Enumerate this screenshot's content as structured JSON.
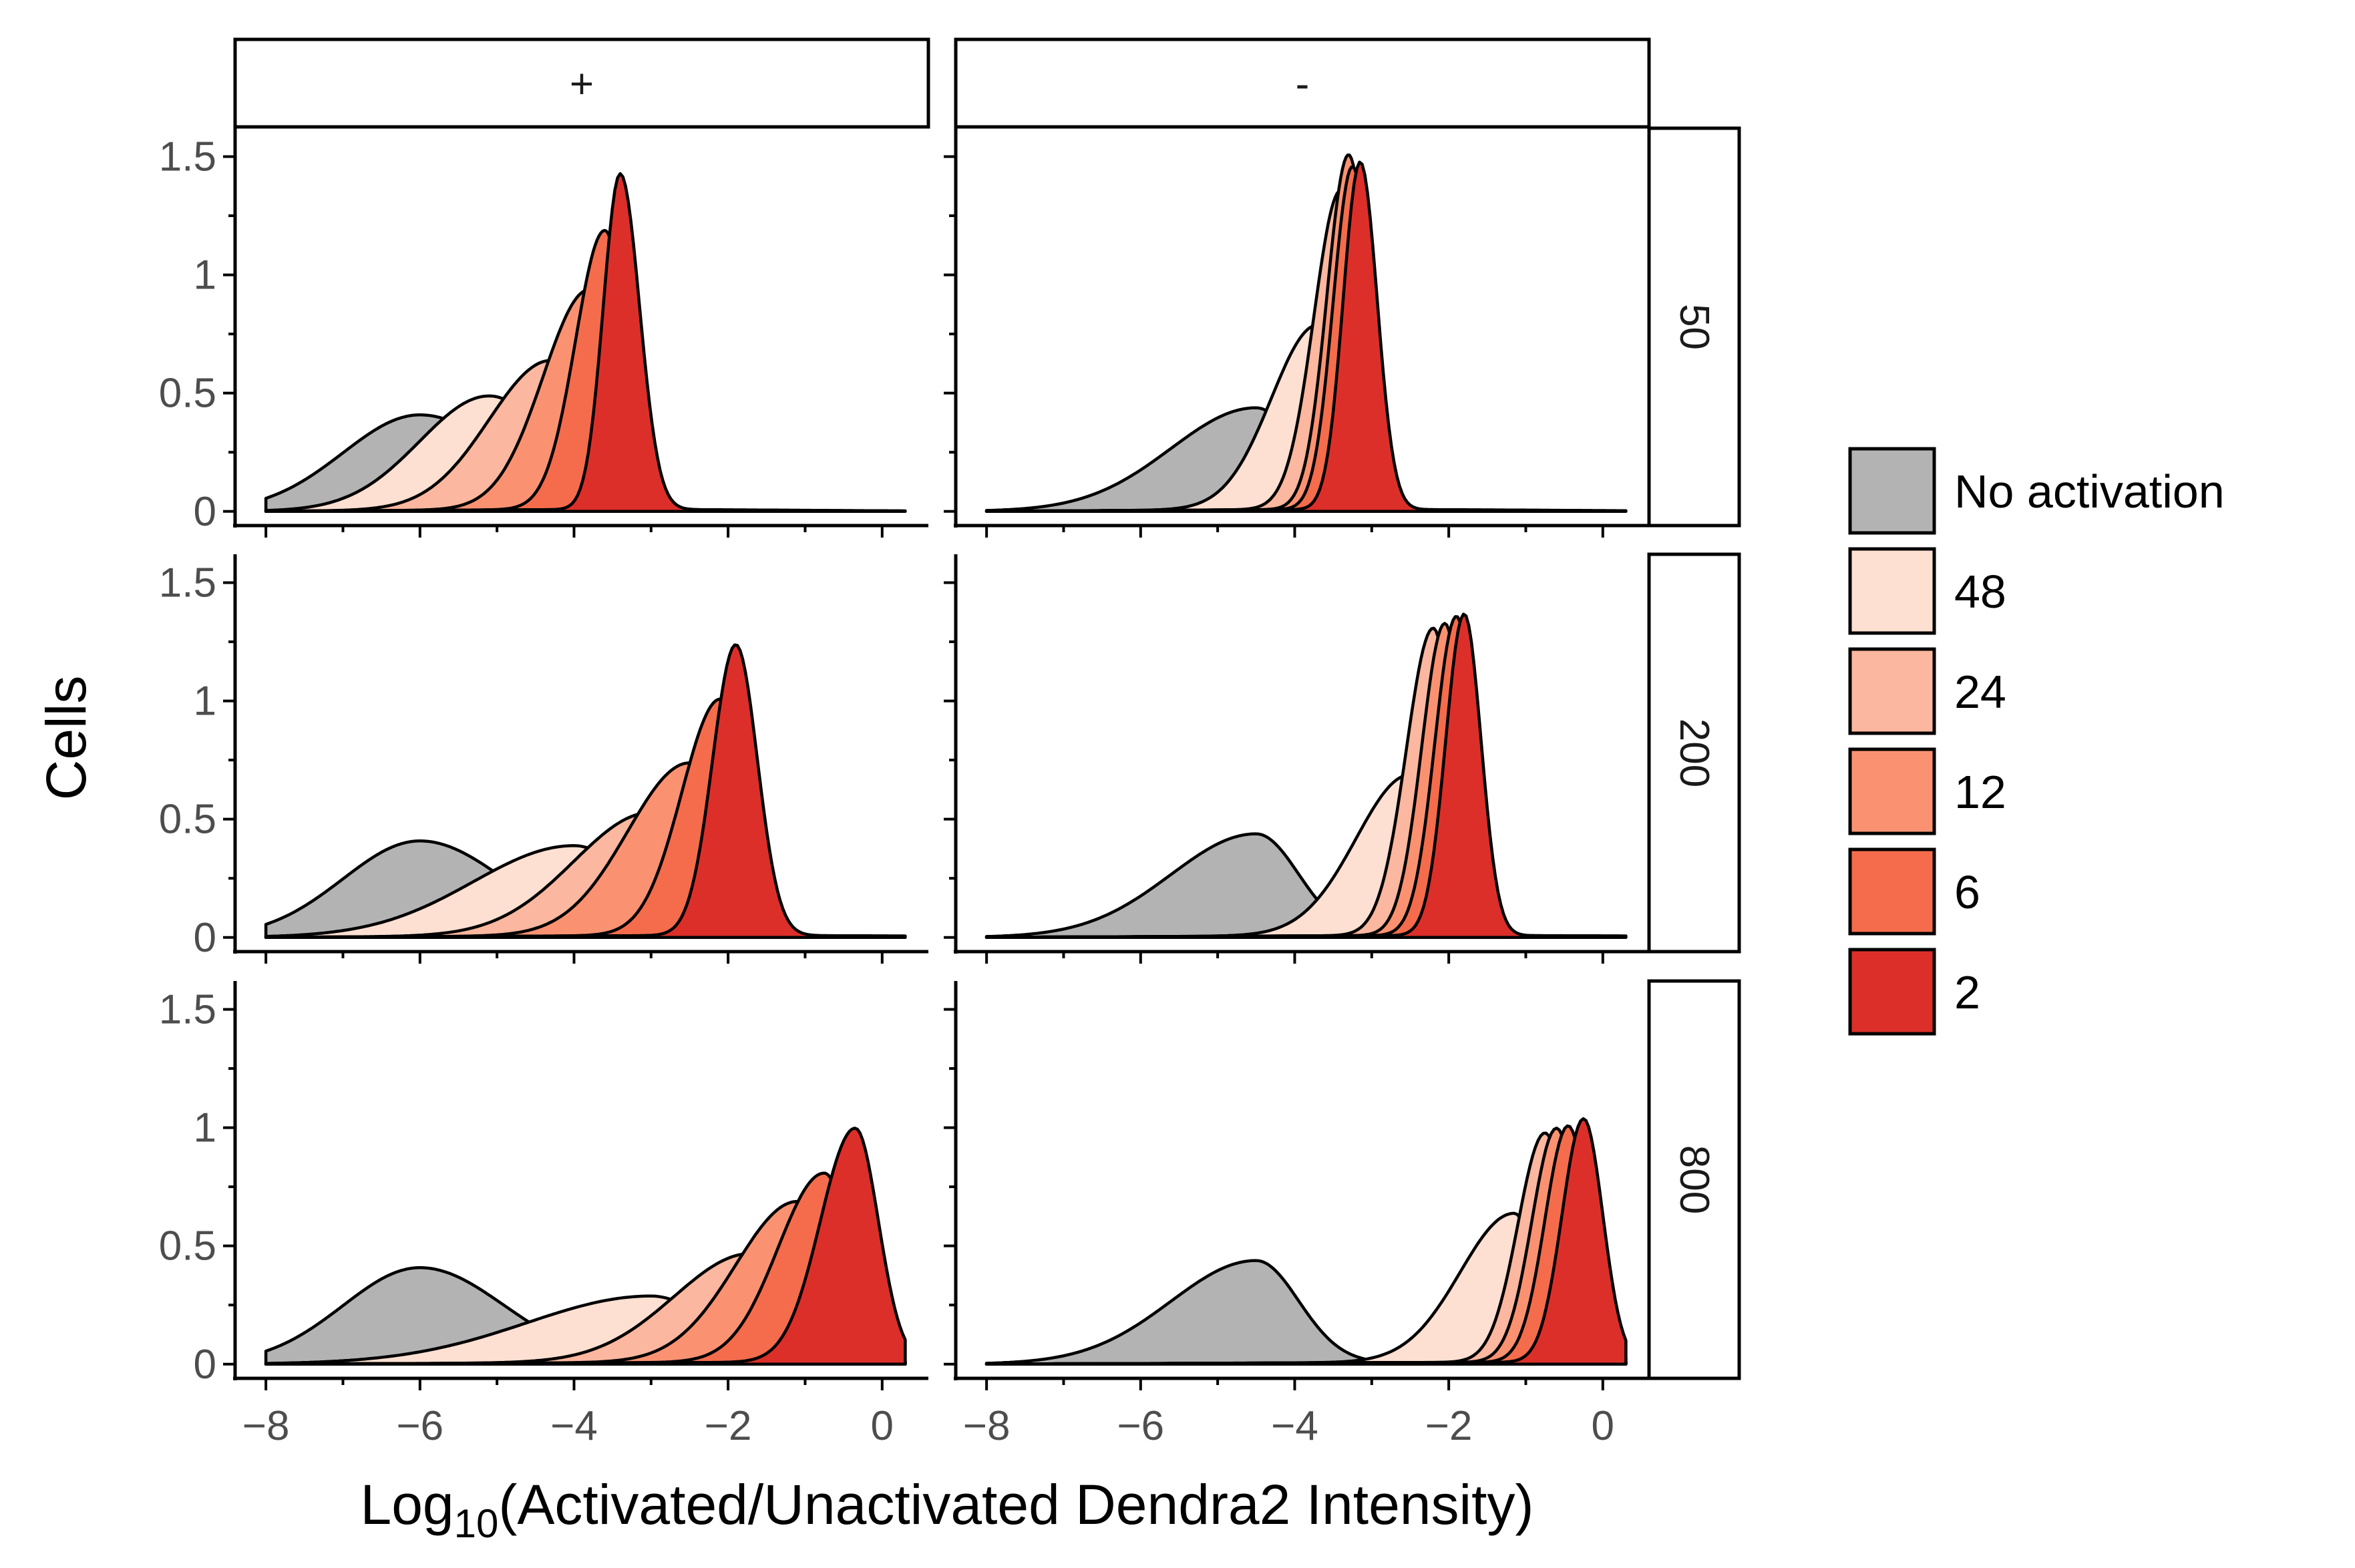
{
  "chart_data": {
    "type": "area",
    "subtype": "faceted density ridge",
    "xlabel_main": "Log",
    "xlabel_sub": "10",
    "xlabel_rest": "(Activated/Unactivated Dendra2 Intensity)",
    "ylabel": "Cells",
    "xlim": [
      -8.4,
      0.6
    ],
    "ylim": [
      -0.06,
      1.62
    ],
    "x_ticks": [
      -8,
      -6,
      -4,
      -2,
      0
    ],
    "x_tick_labels": [
      "−8",
      "−6",
      "−4",
      "−2",
      "0"
    ],
    "y_ticks": [
      0,
      0.5,
      1,
      1.5
    ],
    "y_tick_labels": [
      "0",
      "0.5",
      "1",
      "1.5"
    ],
    "column_facets": [
      "+",
      "-"
    ],
    "row_facets": [
      "50",
      "200",
      "800"
    ],
    "legend": {
      "position": "right",
      "entries": [
        {
          "label": "No activation",
          "color": "#b3b3b3"
        },
        {
          "label": "48",
          "color": "#fde0d2"
        },
        {
          "label": "24",
          "color": "#fbb79f"
        },
        {
          "label": "12",
          "color": "#fa9272"
        },
        {
          "label": "6",
          "color": "#f46c4c"
        },
        {
          "label": "2",
          "color": "#dc2f29"
        }
      ]
    },
    "series_order": [
      "No activation",
      "48",
      "24",
      "12",
      "6",
      "2"
    ],
    "panels": [
      {
        "col": "+",
        "row": "50",
        "series": [
          {
            "name": "No activation",
            "peak_x": -6.0,
            "peak_y": 0.4,
            "sd_left": 1.0,
            "sd_right": 1.1,
            "x_min": -8.0,
            "x_max": -3.0
          },
          {
            "name": "48",
            "peak_x": -5.1,
            "peak_y": 0.48,
            "sd_left": 0.9,
            "sd_right": 0.8,
            "x_min": -8.0,
            "x_max": -2.8
          },
          {
            "name": "24",
            "peak_x": -4.3,
            "peak_y": 0.63,
            "sd_left": 0.8,
            "sd_right": 0.55,
            "x_min": -8.0,
            "x_max": -2.6
          },
          {
            "name": "12",
            "peak_x": -3.8,
            "peak_y": 0.93,
            "sd_left": 0.6,
            "sd_right": 0.38,
            "x_min": -8.0,
            "x_max": -2.4
          },
          {
            "name": "6",
            "peak_x": -3.6,
            "peak_y": 1.18,
            "sd_left": 0.38,
            "sd_right": 0.28,
            "x_min": -8.0,
            "x_max": -2.3
          },
          {
            "name": "2",
            "peak_x": -3.4,
            "peak_y": 1.42,
            "sd_left": 0.22,
            "sd_right": 0.25,
            "x_min": -8.0,
            "x_max": 0.3
          }
        ]
      },
      {
        "col": "-",
        "row": "50",
        "series": [
          {
            "name": "No activation",
            "peak_x": -4.5,
            "peak_y": 0.43,
            "sd_left": 1.1,
            "sd_right": 0.55,
            "x_min": -8.0,
            "x_max": -2.6
          },
          {
            "name": "48",
            "peak_x": -3.7,
            "peak_y": 0.78,
            "sd_left": 0.6,
            "sd_right": 0.35,
            "x_min": -8.0,
            "x_max": -2.4
          },
          {
            "name": "24",
            "peak_x": -3.4,
            "peak_y": 1.35,
            "sd_left": 0.35,
            "sd_right": 0.25,
            "x_min": -8.0,
            "x_max": -2.4
          },
          {
            "name": "12",
            "peak_x": -3.3,
            "peak_y": 1.5,
            "sd_left": 0.28,
            "sd_right": 0.25,
            "x_min": -8.0,
            "x_max": -2.4
          },
          {
            "name": "6",
            "peak_x": -3.25,
            "peak_y": 1.45,
            "sd_left": 0.25,
            "sd_right": 0.24,
            "x_min": -8.0,
            "x_max": -2.4
          },
          {
            "name": "2",
            "peak_x": -3.15,
            "peak_y": 1.47,
            "sd_left": 0.22,
            "sd_right": 0.22,
            "x_min": -8.0,
            "x_max": 0.3
          }
        ]
      },
      {
        "col": "+",
        "row": "200",
        "series": [
          {
            "name": "No activation",
            "peak_x": -6.0,
            "peak_y": 0.4,
            "sd_left": 1.0,
            "sd_right": 1.1,
            "x_min": -8.0,
            "x_max": -3.0
          },
          {
            "name": "48",
            "peak_x": -4.0,
            "peak_y": 0.38,
            "sd_left": 1.3,
            "sd_right": 0.8,
            "x_min": -8.0,
            "x_max": -1.4
          },
          {
            "name": "24",
            "peak_x": -3.0,
            "peak_y": 0.52,
            "sd_left": 1.0,
            "sd_right": 0.6,
            "x_min": -8.0,
            "x_max": -1.3
          },
          {
            "name": "12",
            "peak_x": -2.5,
            "peak_y": 0.73,
            "sd_left": 0.8,
            "sd_right": 0.45,
            "x_min": -8.0,
            "x_max": -1.2
          },
          {
            "name": "6",
            "peak_x": -2.1,
            "peak_y": 1.0,
            "sd_left": 0.5,
            "sd_right": 0.35,
            "x_min": -8.0,
            "x_max": -1.1
          },
          {
            "name": "2",
            "peak_x": -1.9,
            "peak_y": 1.23,
            "sd_left": 0.3,
            "sd_right": 0.28,
            "x_min": -8.0,
            "x_max": 0.3
          }
        ]
      },
      {
        "col": "-",
        "row": "200",
        "series": [
          {
            "name": "No activation",
            "peak_x": -4.5,
            "peak_y": 0.43,
            "sd_left": 1.1,
            "sd_right": 0.55,
            "x_min": -8.0,
            "x_max": -2.6
          },
          {
            "name": "48",
            "peak_x": -2.5,
            "peak_y": 0.68,
            "sd_left": 0.7,
            "sd_right": 0.28,
            "x_min": -8.0,
            "x_max": -1.6
          },
          {
            "name": "24",
            "peak_x": -2.2,
            "peak_y": 1.3,
            "sd_left": 0.35,
            "sd_right": 0.25,
            "x_min": -8.0,
            "x_max": -1.3
          },
          {
            "name": "12",
            "peak_x": -2.05,
            "peak_y": 1.32,
            "sd_left": 0.3,
            "sd_right": 0.24,
            "x_min": -8.0,
            "x_max": -1.3
          },
          {
            "name": "6",
            "peak_x": -1.9,
            "peak_y": 1.35,
            "sd_left": 0.28,
            "sd_right": 0.23,
            "x_min": -8.0,
            "x_max": -1.3
          },
          {
            "name": "2",
            "peak_x": -1.8,
            "peak_y": 1.36,
            "sd_left": 0.24,
            "sd_right": 0.22,
            "x_min": -8.0,
            "x_max": 0.3
          }
        ]
      },
      {
        "col": "+",
        "row": "800",
        "series": [
          {
            "name": "No activation",
            "peak_x": -6.0,
            "peak_y": 0.4,
            "sd_left": 1.0,
            "sd_right": 1.1,
            "x_min": -8.0,
            "x_max": -3.0
          },
          {
            "name": "48",
            "peak_x": -3.0,
            "peak_y": 0.28,
            "sd_left": 1.6,
            "sd_right": 0.8,
            "x_min": -8.0,
            "x_max": 0.3
          },
          {
            "name": "24",
            "peak_x": -1.7,
            "peak_y": 0.46,
            "sd_left": 1.0,
            "sd_right": 0.45,
            "x_min": -8.0,
            "x_max": 0.3
          },
          {
            "name": "12",
            "peak_x": -1.1,
            "peak_y": 0.68,
            "sd_left": 0.8,
            "sd_right": 0.4,
            "x_min": -8.0,
            "x_max": 0.3
          },
          {
            "name": "6",
            "peak_x": -0.75,
            "peak_y": 0.8,
            "sd_left": 0.6,
            "sd_right": 0.35,
            "x_min": -8.0,
            "x_max": 0.3
          },
          {
            "name": "2",
            "peak_x": -0.35,
            "peak_y": 0.99,
            "sd_left": 0.45,
            "sd_right": 0.3,
            "x_min": -8.0,
            "x_max": 0.3
          }
        ]
      },
      {
        "col": "-",
        "row": "800",
        "series": [
          {
            "name": "No activation",
            "peak_x": -4.5,
            "peak_y": 0.43,
            "sd_left": 1.1,
            "sd_right": 0.55,
            "x_min": -8.0,
            "x_max": -2.6
          },
          {
            "name": "48",
            "peak_x": -1.15,
            "peak_y": 0.63,
            "sd_left": 0.7,
            "sd_right": 0.3,
            "x_min": -8.0,
            "x_max": 0.3
          },
          {
            "name": "24",
            "peak_x": -0.75,
            "peak_y": 0.97,
            "sd_left": 0.35,
            "sd_right": 0.3,
            "x_min": -8.0,
            "x_max": 0.3
          },
          {
            "name": "12",
            "peak_x": -0.6,
            "peak_y": 0.99,
            "sd_left": 0.32,
            "sd_right": 0.28,
            "x_min": -8.0,
            "x_max": 0.3
          },
          {
            "name": "6",
            "peak_x": -0.45,
            "peak_y": 1.0,
            "sd_left": 0.3,
            "sd_right": 0.27,
            "x_min": -8.0,
            "x_max": 0.3
          },
          {
            "name": "2",
            "peak_x": -0.25,
            "peak_y": 1.03,
            "sd_left": 0.28,
            "sd_right": 0.25,
            "x_min": -8.0,
            "x_max": 0.3
          }
        ]
      }
    ]
  }
}
